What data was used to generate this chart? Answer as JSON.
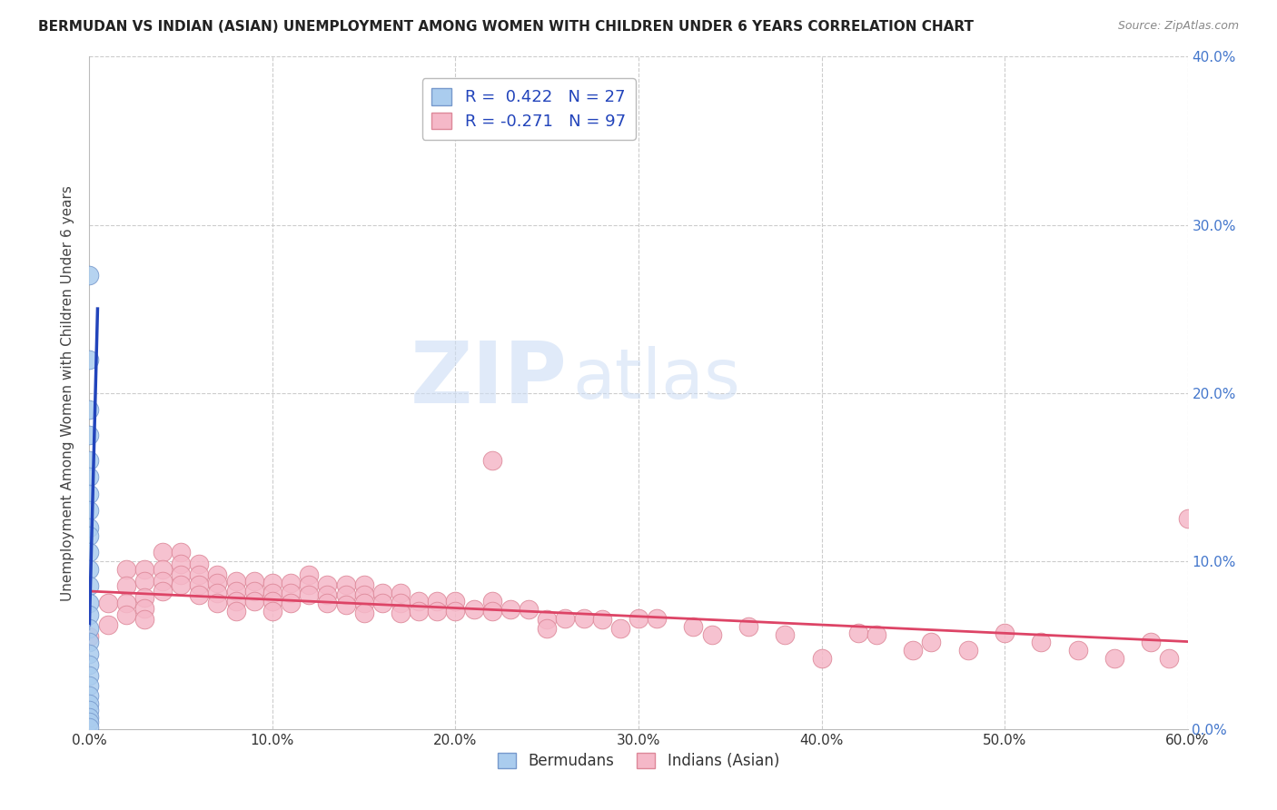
{
  "title": "BERMUDAN VS INDIAN (ASIAN) UNEMPLOYMENT AMONG WOMEN WITH CHILDREN UNDER 6 YEARS CORRELATION CHART",
  "source": "Source: ZipAtlas.com",
  "ylabel": "Unemployment Among Women with Children Under 6 years",
  "xlim": [
    0,
    0.6
  ],
  "ylim": [
    0,
    0.4
  ],
  "bermudan_color": "#aaccee",
  "bermudan_edge": "#7799cc",
  "indian_color": "#f5b8c8",
  "indian_edge": "#dd8899",
  "bermudan_line_solid_color": "#2244bb",
  "bermudan_line_dash_color": "#88aadd",
  "indian_line_color": "#dd4466",
  "bermudan_R": 0.422,
  "bermudan_N": 27,
  "indian_R": -0.271,
  "indian_N": 97,
  "watermark_zip": "ZIP",
  "watermark_atlas": "atlas",
  "legend_label_1": "Bermudans",
  "legend_label_2": "Indians (Asian)",
  "ytick_color": "#4477cc",
  "xtick_color": "#333333",
  "legend_text_color": "#2244bb",
  "bermudan_scatter_x": [
    0.0,
    0.0,
    0.0,
    0.0,
    0.0,
    0.0,
    0.0,
    0.0,
    0.0,
    0.0,
    0.0,
    0.0,
    0.0,
    0.0,
    0.0,
    0.0,
    0.0,
    0.0,
    0.0,
    0.0,
    0.0,
    0.0,
    0.0,
    0.0,
    0.0,
    0.0,
    0.0
  ],
  "bermudan_scatter_y": [
    0.27,
    0.22,
    0.19,
    0.175,
    0.16,
    0.15,
    0.14,
    0.13,
    0.12,
    0.115,
    0.105,
    0.095,
    0.085,
    0.075,
    0.068,
    0.06,
    0.052,
    0.045,
    0.038,
    0.032,
    0.026,
    0.02,
    0.015,
    0.011,
    0.007,
    0.004,
    0.001
  ],
  "indian_scatter_x": [
    0.0,
    0.01,
    0.01,
    0.02,
    0.02,
    0.02,
    0.02,
    0.03,
    0.03,
    0.03,
    0.03,
    0.03,
    0.04,
    0.04,
    0.04,
    0.04,
    0.05,
    0.05,
    0.05,
    0.05,
    0.06,
    0.06,
    0.06,
    0.06,
    0.07,
    0.07,
    0.07,
    0.07,
    0.08,
    0.08,
    0.08,
    0.08,
    0.09,
    0.09,
    0.09,
    0.1,
    0.1,
    0.1,
    0.1,
    0.11,
    0.11,
    0.11,
    0.12,
    0.12,
    0.12,
    0.13,
    0.13,
    0.13,
    0.14,
    0.14,
    0.14,
    0.15,
    0.15,
    0.15,
    0.15,
    0.16,
    0.16,
    0.17,
    0.17,
    0.17,
    0.18,
    0.18,
    0.19,
    0.19,
    0.2,
    0.2,
    0.21,
    0.22,
    0.22,
    0.23,
    0.24,
    0.25,
    0.25,
    0.26,
    0.27,
    0.28,
    0.29,
    0.3,
    0.31,
    0.33,
    0.34,
    0.36,
    0.38,
    0.4,
    0.42,
    0.43,
    0.45,
    0.46,
    0.48,
    0.5,
    0.52,
    0.54,
    0.56,
    0.58,
    0.59,
    0.6,
    0.22
  ],
  "indian_scatter_y": [
    0.055,
    0.075,
    0.062,
    0.095,
    0.085,
    0.075,
    0.068,
    0.095,
    0.088,
    0.078,
    0.072,
    0.065,
    0.105,
    0.095,
    0.088,
    0.082,
    0.105,
    0.098,
    0.092,
    0.086,
    0.098,
    0.092,
    0.086,
    0.08,
    0.092,
    0.087,
    0.081,
    0.075,
    0.088,
    0.082,
    0.076,
    0.07,
    0.088,
    0.082,
    0.076,
    0.087,
    0.081,
    0.076,
    0.07,
    0.087,
    0.081,
    0.075,
    0.092,
    0.086,
    0.08,
    0.086,
    0.08,
    0.075,
    0.086,
    0.08,
    0.074,
    0.086,
    0.08,
    0.075,
    0.069,
    0.081,
    0.075,
    0.081,
    0.075,
    0.069,
    0.076,
    0.07,
    0.076,
    0.07,
    0.076,
    0.07,
    0.071,
    0.076,
    0.07,
    0.071,
    0.071,
    0.065,
    0.06,
    0.066,
    0.066,
    0.065,
    0.06,
    0.066,
    0.066,
    0.061,
    0.056,
    0.061,
    0.056,
    0.042,
    0.057,
    0.056,
    0.047,
    0.052,
    0.047,
    0.057,
    0.052,
    0.047,
    0.042,
    0.052,
    0.042,
    0.125,
    0.16
  ],
  "bermudan_line_x0": 0.0,
  "bermudan_line_y0": 0.062,
  "bermudan_line_slope": 42.0,
  "indian_line_x0": 0.0,
  "indian_line_x1": 0.6,
  "indian_line_y0": 0.082,
  "indian_line_y1": 0.052
}
